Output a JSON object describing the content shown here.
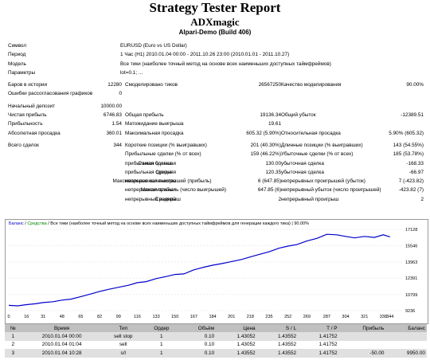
{
  "title": "Strategy Tester Report",
  "expert": "ADXmagic",
  "server": "Alpari-Demo (Build 406)",
  "info": {
    "symbol_label": "Символ",
    "symbol_value": "EURUSD (Euro vs US Dollar)",
    "period_label": "Период",
    "period_value": "1 Час (H1) 2010.01.04 00:00 - 2011.10.26 23:00 (2010.01.01 - 2011.10.27)",
    "model_label": "Модель",
    "model_value": "Все тики (наиболее точный метод на основе всех наименьших доступных таймфреймов)",
    "params_label": "Параметры",
    "params_value": "lot=0.1; ..."
  },
  "stats": {
    "bars_label": "Баров в истории",
    "bars_value": "12280",
    "ticks_label": "Смоделировано тиков",
    "ticks_value": "26567250",
    "quality_label": "Качество моделирования",
    "quality_value": "90.00%",
    "errors_label": "Ошибки рассогласования графиков",
    "errors_value": "0",
    "deposit_label": "Начальный депозит",
    "deposit_value": "10000.00",
    "netprofit_label": "Чистая прибыль",
    "netprofit_value": "6746.83",
    "grossprofit_label": "Общая прибыль",
    "grossprofit_value": "19136.34",
    "grossloss_label": "Общий убыток",
    "grossloss_value": "-12389.51",
    "pf_label": "Прибыльность",
    "pf_value": "1.54",
    "payoff_label": "Матожидание выигрыша",
    "payoff_value": "19.61",
    "absdd_label": "Абсолютная просадка",
    "absdd_value": "360.01",
    "maxdd_label": "Максимальная просадка",
    "maxdd_value": "605.32 (5.90%)",
    "reldd_label": "Относительная просадка",
    "reldd_value": "5.90% (605.32)",
    "total_label": "Всего сделок",
    "total_value": "344",
    "short_label": "Короткие позиции (% выигравших)",
    "short_value": "201 (40.30%)",
    "long_label": "Длинные позиции (% выигравших)",
    "long_value": "143 (54.55%)",
    "profit_trades_label": "Прибыльные сделки (% от всех)",
    "profit_trades_value": "159 (46.22%)",
    "loss_trades_label": "Убыточные сделки (% от всех)",
    "loss_trades_value": "185 (53.78%)",
    "largest_left": "Самая большая",
    "largest_profit_label": "прибыльная сделка",
    "largest_profit_value": "130.00",
    "largest_loss_label": "убыточная сделка",
    "largest_loss_value": "-168.33",
    "average_left": "Средняя",
    "avg_profit_label": "прибыльная сделка",
    "avg_profit_value": "120.35",
    "avg_loss_label": "убыточная сделка",
    "avg_loss_value": "-66.97",
    "maxcount_left": "Максимальное количество",
    "maxcons_win_label": "непрерывных выигрышей (прибыль)",
    "maxcons_win_value": "6 (647.85)",
    "maxcons_loss_label": "непрерывных проигрышей (убыток)",
    "maxcons_loss_value": "7 (-423.82)",
    "maximal_left": "Максимальная",
    "maxprofit_cons_label": "непрерывная прибыль (число выигрышей)",
    "maxprofit_cons_value": "647.85 (6)",
    "maxloss_cons_label": "непрерывный убыток (число проигрышей)",
    "maxloss_cons_value": "-423.82 (7)",
    "avgcons_left": "Средний",
    "avg_win_label": "непрерывный выигрыш",
    "avg_win_value": "2",
    "avg_loss_cons_label": "непрерывный проигрыш",
    "avg_loss_cons_value": "2"
  },
  "chart_legend": {
    "balance": "Баланс",
    "slash1": " / ",
    "equity": "Средства",
    "rest": " / Все тики (наиболее точный метод на основе всех наименьших доступных таймфреймов для генерации каждого тика) | 90.00%"
  },
  "chart_data": {
    "type": "line",
    "xlim": [
      0,
      355
    ],
    "ylim": [
      9236,
      17128
    ],
    "x_ticks": [
      "0",
      "16",
      "31",
      "48",
      "65",
      "82",
      "99",
      "116",
      "133",
      "150",
      "167",
      "184",
      "201",
      "218",
      "235",
      "252",
      "269",
      "287",
      "304",
      "321",
      "338",
      "344"
    ],
    "y_ticks": [
      "17128",
      "15546",
      "13963",
      "12391",
      "10799",
      "9236"
    ],
    "series": [
      {
        "x": [
          0,
          8,
          16,
          24,
          31,
          40,
          48,
          56,
          65,
          74,
          82,
          90,
          99,
          108,
          116,
          124,
          133,
          142,
          150,
          158,
          167,
          176,
          184,
          192,
          201,
          210,
          218,
          226,
          235,
          244,
          252,
          260,
          269,
          278,
          287,
          296,
          304,
          312,
          321,
          330,
          338,
          344
        ],
        "y": [
          9750,
          9700,
          9820,
          9900,
          10020,
          10100,
          10260,
          10350,
          10600,
          10850,
          11100,
          11300,
          11500,
          11700,
          11950,
          12050,
          12350,
          12550,
          12750,
          12800,
          13200,
          13450,
          13650,
          13800,
          14000,
          14200,
          14450,
          14700,
          14950,
          15300,
          15500,
          15650,
          16000,
          16250,
          16650,
          16600,
          16450,
          16300,
          16450,
          16350,
          16600,
          16400
        ]
      }
    ]
  },
  "trades": {
    "headers": [
      "№",
      "Время",
      "Тип",
      "Ордер",
      "Объём",
      "Цена",
      "S / L",
      "T / P",
      "Прибыль",
      "Баланс"
    ],
    "rows": [
      [
        "1",
        "2010.01.04 00:00",
        "sell stop",
        "1",
        "0.10",
        "1.43052",
        "1.43552",
        "1.41752",
        "",
        ""
      ],
      [
        "2",
        "2010.01.04 01:04",
        "sell",
        "1",
        "0.10",
        "1.43052",
        "1.43552",
        "1.41752",
        "",
        ""
      ],
      [
        "3",
        "2010.01.04 10:28",
        "s/l",
        "1",
        "0.10",
        "1.43552",
        "1.43552",
        "1.41752",
        "-50.00",
        "9950.00"
      ]
    ]
  }
}
